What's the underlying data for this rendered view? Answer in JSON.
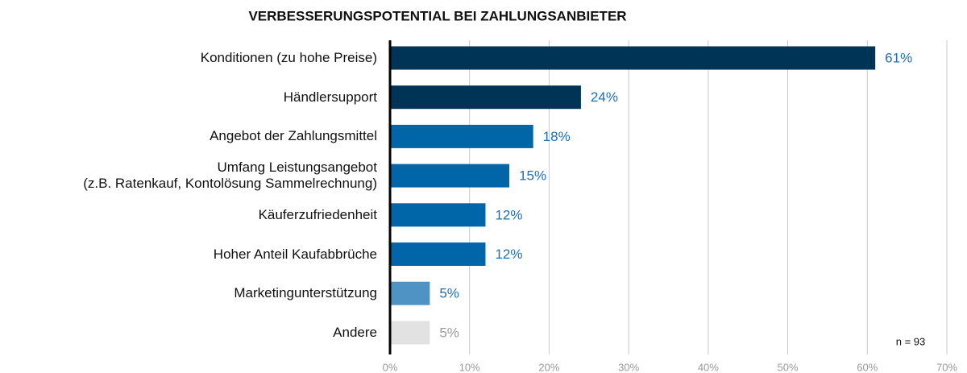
{
  "chart_data": {
    "type": "hbar",
    "title": "VERBESSERUNGSPOTENTIAL BEI ZAHLUNGSANBIETER",
    "categories": [
      "Konditionen (zu hohe Preise)",
      "Händlersupport",
      "Angebot der Zahlungsmittel",
      "Umfang Leistungsangebot\n(z.B. Ratenkauf, Kontolösung Sammelrechnung)",
      "Käuferzufriedenheit",
      "Hoher Anteil Kaufabbrüche",
      "Marketingunterstützung",
      "Andere"
    ],
    "values": [
      61,
      24,
      18,
      15,
      12,
      12,
      5,
      5
    ],
    "value_labels": [
      "61%",
      "24%",
      "18%",
      "15%",
      "12%",
      "12%",
      "5%",
      "5%"
    ],
    "colors": [
      "#003456",
      "#003456",
      "#0066a8",
      "#0066a8",
      "#0066a8",
      "#0066a8",
      "#4f93c4",
      "#e2e2e2"
    ],
    "label_colors": [
      "#1f6fb0",
      "#1f6fb0",
      "#1f6fb0",
      "#1f6fb0",
      "#1f6fb0",
      "#1f6fb0",
      "#1f6fb0",
      "#9a9a9a"
    ],
    "xlim": [
      0,
      70
    ],
    "xticks": [
      {
        "value": 0,
        "label": "0%"
      },
      {
        "value": 10,
        "label": "10%"
      },
      {
        "value": 20,
        "label": "20%"
      },
      {
        "value": 30,
        "label": "30%"
      },
      {
        "value": 40,
        "label": "40%"
      },
      {
        "value": 50,
        "label": "50%"
      },
      {
        "value": 60,
        "label": "60%"
      },
      {
        "value": 70,
        "label": "70%"
      }
    ],
    "grid": true,
    "annotation": "n = 93"
  }
}
